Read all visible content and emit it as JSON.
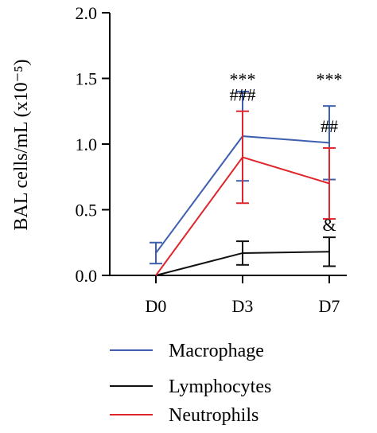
{
  "chart_data": {
    "type": "line",
    "categories": [
      "D0",
      "D3",
      "D7"
    ],
    "ylabel": "BAL cells/mL (x10⁻⁵)",
    "ylim": [
      0,
      2.0
    ],
    "yticks": [
      "0.0",
      "0.5",
      "1.0",
      "1.5",
      "2.0"
    ],
    "grid": false,
    "legend_position": "bottom",
    "series": [
      {
        "name": "Macrophage",
        "color": "#3e5fb0",
        "values": [
          0.17,
          1.06,
          1.01
        ],
        "errors": [
          0.08,
          0.34,
          0.28
        ]
      },
      {
        "name": "Lymphocytes",
        "color": "#111111",
        "values": [
          0.0,
          0.17,
          0.18
        ],
        "errors": [
          0.0,
          0.09,
          0.11
        ]
      },
      {
        "name": "Neutrophils",
        "color": "#e0262c",
        "values": [
          0.0,
          0.9,
          0.7
        ],
        "errors": [
          0.0,
          0.35,
          0.27
        ]
      }
    ],
    "annotations": [
      {
        "category": "D3",
        "value": 1.45,
        "text": "***"
      },
      {
        "category": "D3",
        "value": 1.33,
        "text": "###"
      },
      {
        "category": "D7",
        "value": 1.45,
        "text": "***"
      },
      {
        "category": "D7",
        "value": 1.09,
        "text": "##"
      },
      {
        "category": "D7",
        "value": 0.34,
        "text": "&"
      }
    ]
  }
}
